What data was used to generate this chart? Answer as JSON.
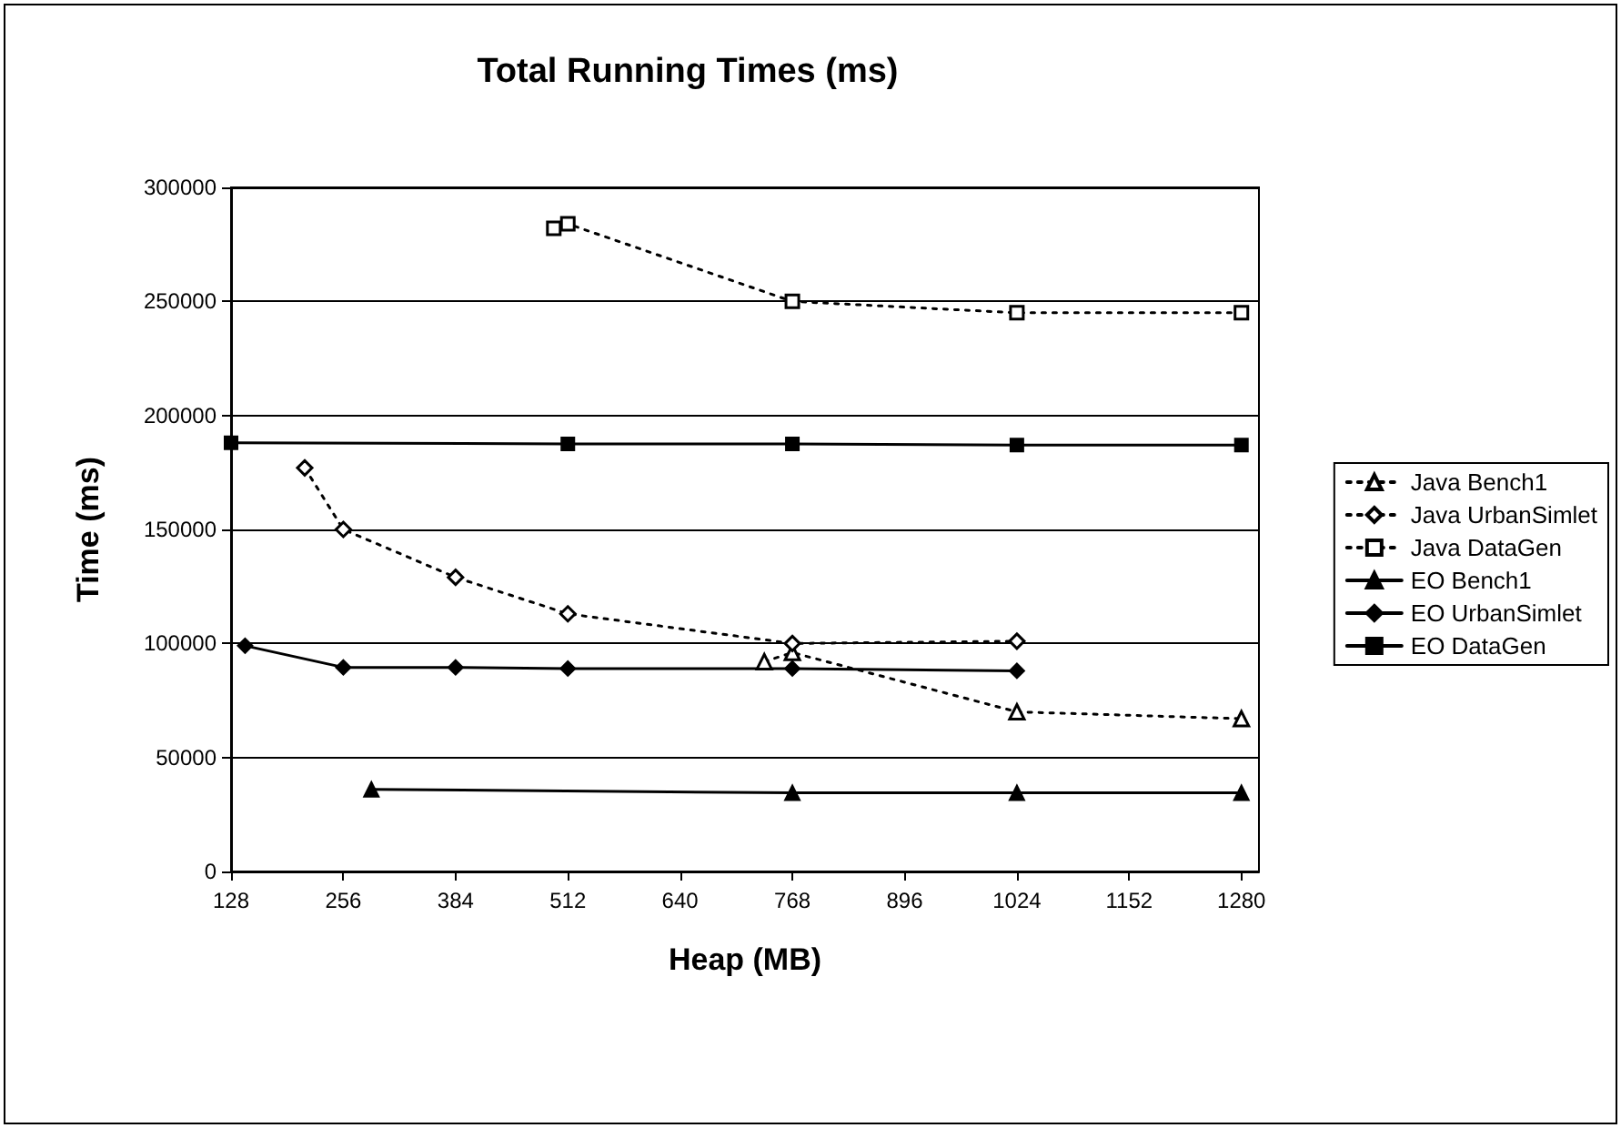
{
  "chart_data": {
    "type": "line",
    "title": "Total Running Times (ms)",
    "xlabel": "Heap (MB)",
    "ylabel": "Time (ms)",
    "xlim": [
      128,
      1300
    ],
    "xticks": [
      128,
      256,
      384,
      512,
      640,
      768,
      896,
      1024,
      1152,
      1280
    ],
    "ylim": [
      0,
      300000
    ],
    "yticks": [
      0,
      50000,
      100000,
      150000,
      200000,
      250000,
      300000
    ],
    "grid": "y",
    "legend": "right",
    "series": [
      {
        "name": "Java Bench1",
        "color": "#000000",
        "marker": "triangle",
        "line_style": "dotted",
        "x": [
          736,
          768,
          1024,
          1280
        ],
        "values": [
          92000,
          96000,
          70000,
          67000
        ]
      },
      {
        "name": "Java UrbanSimlet",
        "color": "#000000",
        "marker": "diamond",
        "line_style": "dotted",
        "x": [
          212,
          256,
          384,
          512,
          768,
          1024
        ],
        "values": [
          177000,
          150000,
          129000,
          113000,
          100000,
          101000
        ]
      },
      {
        "name": "Java DataGen",
        "color": "#000000",
        "marker": "square",
        "line_style": "dotted",
        "x": [
          496,
          512,
          768,
          1024,
          1280
        ],
        "values": [
          282000,
          284000,
          250000,
          245000,
          245000
        ]
      },
      {
        "name": "EO Bench1",
        "color": "#000000",
        "marker": "triangle",
        "line_style": "solid",
        "x": [
          288,
          768,
          1024,
          1280
        ],
        "values": [
          36000,
          34500,
          34500,
          34500
        ]
      },
      {
        "name": "EO UrbanSimlet",
        "color": "#000000",
        "marker": "diamond",
        "line_style": "solid",
        "x": [
          144,
          256,
          384,
          512,
          768,
          1024
        ],
        "values": [
          99000,
          89500,
          89500,
          89000,
          89000,
          88000
        ]
      },
      {
        "name": "EO DataGen",
        "color": "#000000",
        "marker": "square",
        "line_style": "solid",
        "x": [
          128,
          512,
          768,
          1024,
          1280
        ],
        "values": [
          188000,
          187500,
          187500,
          187000,
          187000
        ]
      }
    ]
  }
}
